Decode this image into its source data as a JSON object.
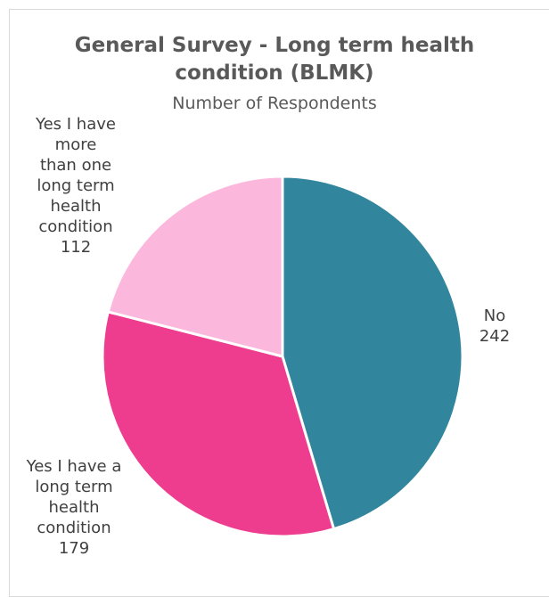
{
  "colors": {
    "background": "#ffffff",
    "border": "#d9d9d9",
    "title_text": "#595959",
    "label_text": "#404040",
    "slice_border": "#ffffff"
  },
  "chart_data": {
    "type": "pie",
    "title": "General Survey - Long term health condition (BLMK)",
    "title_lines": [
      "General Survey - Long term health",
      "condition (BLMK)"
    ],
    "subtitle": "Number of Respondents",
    "start_angle_deg": 0,
    "direction": "clockwise",
    "legend": "none",
    "slices": [
      {
        "label": "No",
        "label_lines": "No\n242",
        "value": 242,
        "color": "#31859c"
      },
      {
        "label": "Yes I have a long term health condition",
        "label_lines": "Yes I have a\nlong term\nhealth\ncondition\n179",
        "value": 179,
        "color": "#ee3d8f"
      },
      {
        "label": "Yes I have more than one long term health condition",
        "label_lines": "Yes I have\nmore\nthan one\nlong term\nhealth\ncondition\n112",
        "value": 112,
        "color": "#fbb8dc"
      }
    ]
  }
}
